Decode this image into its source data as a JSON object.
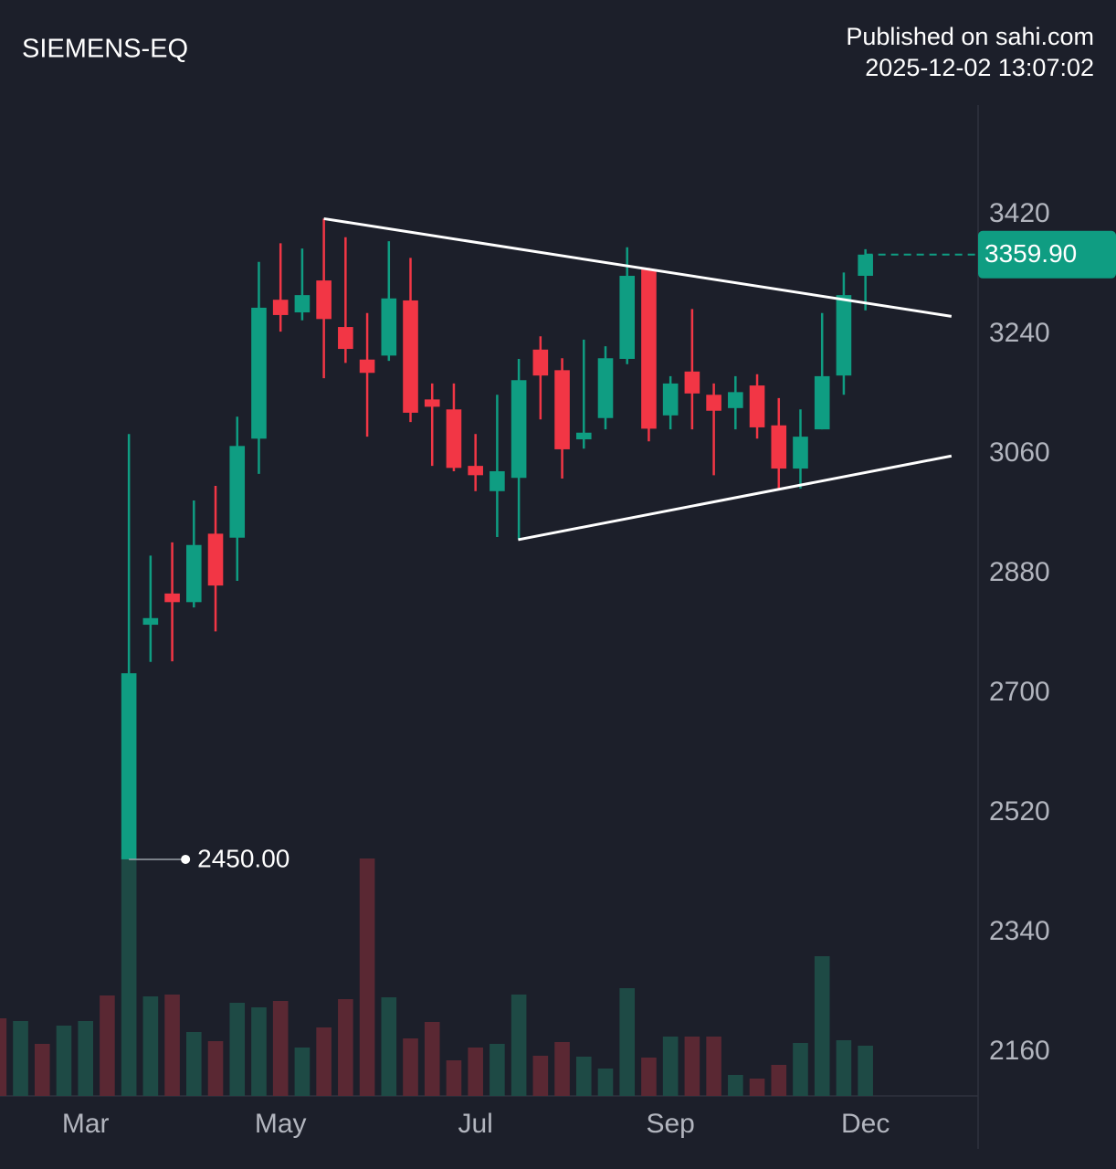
{
  "chart_data": {
    "type": "candlestick",
    "title": "SIEMENS-EQ",
    "subtitle": "Published on sahi.com",
    "timestamp": "2025-12-02 13:07:02",
    "x": [
      -6,
      -5,
      -4,
      -3,
      -2,
      -1,
      0,
      1,
      2,
      3,
      4,
      5,
      6,
      7,
      8,
      9,
      10,
      11,
      12,
      13,
      14,
      15,
      16,
      17,
      18,
      19,
      20,
      21,
      22,
      23,
      24,
      25,
      26,
      27,
      28,
      29,
      30,
      31,
      32,
      33,
      34
    ],
    "open": [
      null,
      null,
      null,
      null,
      null,
      null,
      2450,
      2803,
      2850,
      2837,
      2940,
      2934,
      3083,
      3292,
      3273,
      3321,
      3251,
      3202,
      3208,
      3291,
      3142,
      3127,
      3042,
      3004,
      3024,
      3217,
      3186,
      3082,
      3114,
      3203,
      3338,
      3118,
      3184,
      3149,
      3129,
      3163,
      3103,
      3038,
      3097,
      3178,
      3328
    ],
    "high": [
      null,
      null,
      null,
      null,
      null,
      null,
      3090,
      2907,
      2927,
      2990,
      3012,
      3116,
      3349,
      3377,
      3369,
      3414,
      3386,
      3272,
      3380,
      3355,
      3166,
      3166,
      3090,
      3149,
      3203,
      3237,
      3204,
      3232,
      3222,
      3371,
      3340,
      3177,
      3278,
      3166,
      3177,
      3180,
      3144,
      3127,
      3272,
      3333,
      3368
    ],
    "low": [
      null,
      null,
      null,
      null,
      null,
      null,
      2450,
      2747,
      2748,
      2829,
      2793,
      2869,
      3030,
      3244,
      3261,
      3174,
      3197,
      3086,
      3200,
      3108,
      3042,
      3034,
      3004,
      2935,
      2932,
      3112,
      3023,
      3068,
      3097,
      3195,
      3079,
      3097,
      3097,
      3028,
      3097,
      3083,
      3008,
      3008,
      3097,
      3149,
      3276
    ],
    "close": [
      null,
      null,
      null,
      null,
      null,
      null,
      2730,
      2813,
      2837,
      2923,
      2862,
      3072,
      3280,
      3269,
      3299,
      3263,
      3218,
      3182,
      3294,
      3122,
      3131,
      3039,
      3028,
      3034,
      3171,
      3178,
      3067,
      3092,
      3204,
      3328,
      3098,
      3166,
      3151,
      3125,
      3153,
      3100,
      3038,
      3086,
      3177,
      3299,
      3359.9
    ],
    "volume": [
      85,
      82,
      57,
      77,
      82,
      110,
      263,
      109,
      111,
      70,
      60,
      102,
      97,
      104,
      53,
      75,
      106,
      260,
      108,
      63,
      81,
      39,
      53,
      57,
      111,
      44,
      59,
      43,
      30,
      118,
      42,
      65,
      65,
      65,
      23,
      19,
      34,
      58,
      153,
      61,
      55
    ],
    "up_color": "#0f9d82",
    "down_color": "#f23645",
    "volume_up_color": "#1e4a45",
    "volume_down_color": "#5a2833",
    "xlim": [
      -5.95,
      39.2
    ],
    "xticks": [
      {
        "value": -2,
        "label": "Mar"
      },
      {
        "value": 7,
        "label": "May"
      },
      {
        "value": 16,
        "label": "Jul"
      },
      {
        "value": 25,
        "label": "Sep"
      },
      {
        "value": 34,
        "label": "Dec"
      }
    ],
    "ylim": [
      2094,
      3585
    ],
    "yticks": [
      2160,
      2340,
      2520,
      2700,
      2880,
      3060,
      3240,
      3420
    ],
    "trendlines": [
      {
        "x": [
          9,
          37.97
        ],
        "y": [
          3414,
          3267
        ]
      },
      {
        "x": [
          17.97,
          37.97
        ],
        "y": [
          2931,
          3057
        ]
      }
    ],
    "low_marker": {
      "x": 0,
      "value": 2450,
      "label": "2450.00"
    },
    "last_price": {
      "value": 3359.9,
      "label": "3359.90"
    }
  }
}
